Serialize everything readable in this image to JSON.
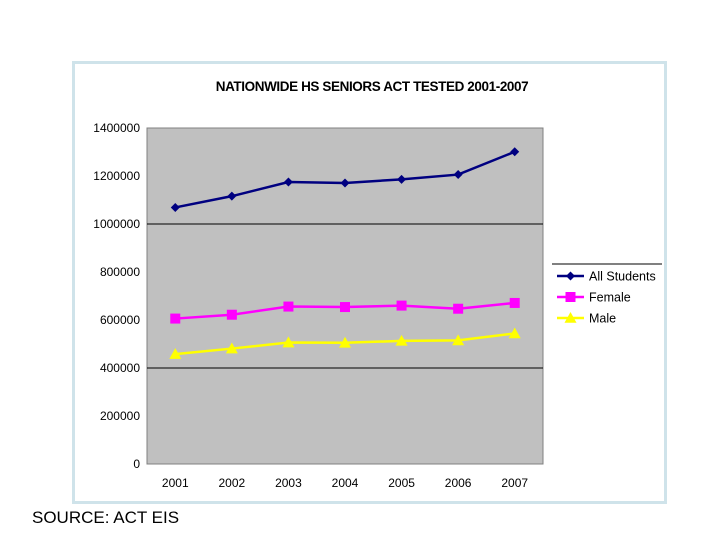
{
  "chart_data": {
    "type": "line",
    "title": "NATIONWIDE HS SENIORS ACT TESTED 2001-2007",
    "categories": [
      "2001",
      "2002",
      "2003",
      "2004",
      "2005",
      "2006",
      "2007"
    ],
    "ylim": [
      0,
      1400000
    ],
    "y_ticks": [
      "0",
      "200000",
      "400000",
      "600000",
      "800000",
      "1000000",
      "1200000",
      "1400000"
    ],
    "xlabel": "",
    "ylabel": "",
    "gridlines": "major y at 0, 400000, 1000000",
    "legend_position": "right",
    "series": [
      {
        "name": "All Students",
        "color": "#000080",
        "marker": "diamond",
        "values": [
          1069000,
          1116000,
          1175000,
          1171000,
          1186000,
          1206000,
          1301000
        ]
      },
      {
        "name": "Female",
        "color": "#ff00ff",
        "marker": "square",
        "values": [
          606000,
          622000,
          656000,
          654000,
          660000,
          647000,
          671000
        ]
      },
      {
        "name": "Male",
        "color": "#ffff00",
        "marker": "triangle",
        "values": [
          458000,
          481000,
          506000,
          505000,
          513000,
          515000,
          544000
        ]
      }
    ]
  },
  "footer": {
    "source": "SOURCE: ACT EIS"
  }
}
